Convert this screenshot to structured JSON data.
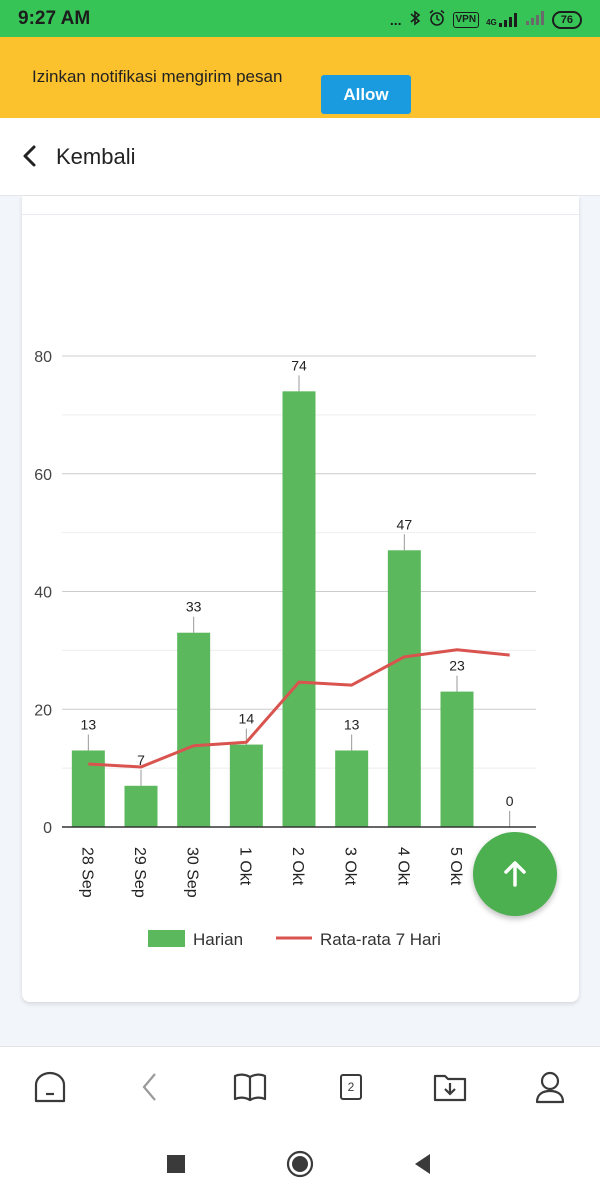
{
  "status_bar": {
    "time": "9:27 AM",
    "dots": "...",
    "vpn": "VPN",
    "network": "4G",
    "battery": "76"
  },
  "notification": {
    "text": "Izinkan notifikasi mengirim pesan",
    "allow_label": "Allow"
  },
  "header": {
    "back_label": "Kembali"
  },
  "chart_data": {
    "type": "bar",
    "categories": [
      "28 Sep",
      "29 Sep",
      "30 Sep",
      "1 Okt",
      "2 Okt",
      "3 Okt",
      "4 Okt",
      "5 Okt",
      ""
    ],
    "series": [
      {
        "name": "Harian",
        "type": "bar",
        "color": "#5cb85c",
        "values": [
          13,
          7,
          33,
          14,
          74,
          13,
          47,
          23,
          0
        ]
      },
      {
        "name": "Rata-rata 7 Hari",
        "type": "line",
        "color": "#d9534f",
        "values": [
          10.7,
          10.2,
          13.8,
          14.4,
          24.6,
          24.1,
          28.9,
          30.1,
          29.2
        ]
      }
    ],
    "data_labels": [
      "13",
      "7",
      "33",
      "14",
      "74",
      "13",
      "47",
      "23",
      "0"
    ],
    "y_ticks": [
      "0",
      "20",
      "40",
      "60",
      "80"
    ],
    "ylim": [
      0,
      80
    ],
    "grid": true,
    "legend_position": "bottom"
  },
  "bottom_nav": {
    "tab_count": "2"
  }
}
